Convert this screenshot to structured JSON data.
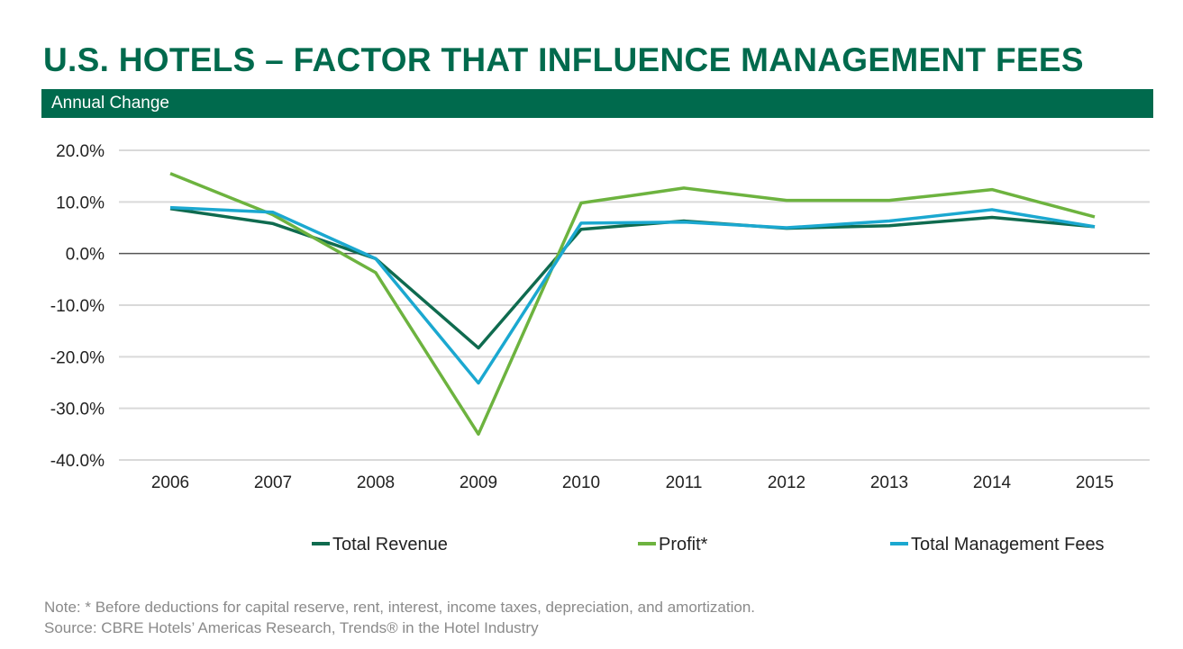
{
  "title": "U.S. HOTELS – FACTOR THAT INFLUENCE MANAGEMENT FEES",
  "subtitle": "Annual Change",
  "note": "Note: * Before deductions for capital reserve, rent, interest, income taxes, depreciation, and amortization.",
  "source": "Source: CBRE Hotels’ Americas Research, Trends® in the Hotel Industry",
  "chart_data": {
    "type": "line",
    "title": "Annual Change",
    "categories": [
      "2006",
      "2007",
      "2008",
      "2009",
      "2010",
      "2011",
      "2012",
      "2013",
      "2014",
      "2015"
    ],
    "ylim": [
      -40,
      20
    ],
    "yticks": [
      20,
      10,
      0,
      -10,
      -20,
      -30,
      -40
    ],
    "ytick_labels": [
      "20.0%",
      "10.0%",
      "0.0%",
      "-10.0%",
      "-20.0%",
      "-30.0%",
      "-40.0%"
    ],
    "grid": true,
    "legend_position": "bottom",
    "series": [
      {
        "name": "Total Revenue",
        "color": "#0f6b4f",
        "values": [
          8.7,
          5.8,
          -1.0,
          -18.3,
          4.7,
          6.3,
          4.9,
          5.4,
          7.0,
          5.2
        ]
      },
      {
        "name": "Profit*",
        "color": "#6db33f",
        "values": [
          15.5,
          7.5,
          -3.7,
          -35.0,
          9.8,
          12.7,
          10.3,
          10.3,
          12.4,
          7.1
        ]
      },
      {
        "name": "Total Management Fees",
        "color": "#1ba8d0",
        "values": [
          8.9,
          8.0,
          -1.0,
          -25.1,
          5.9,
          6.1,
          5.0,
          6.3,
          8.5,
          5.2
        ]
      }
    ]
  }
}
